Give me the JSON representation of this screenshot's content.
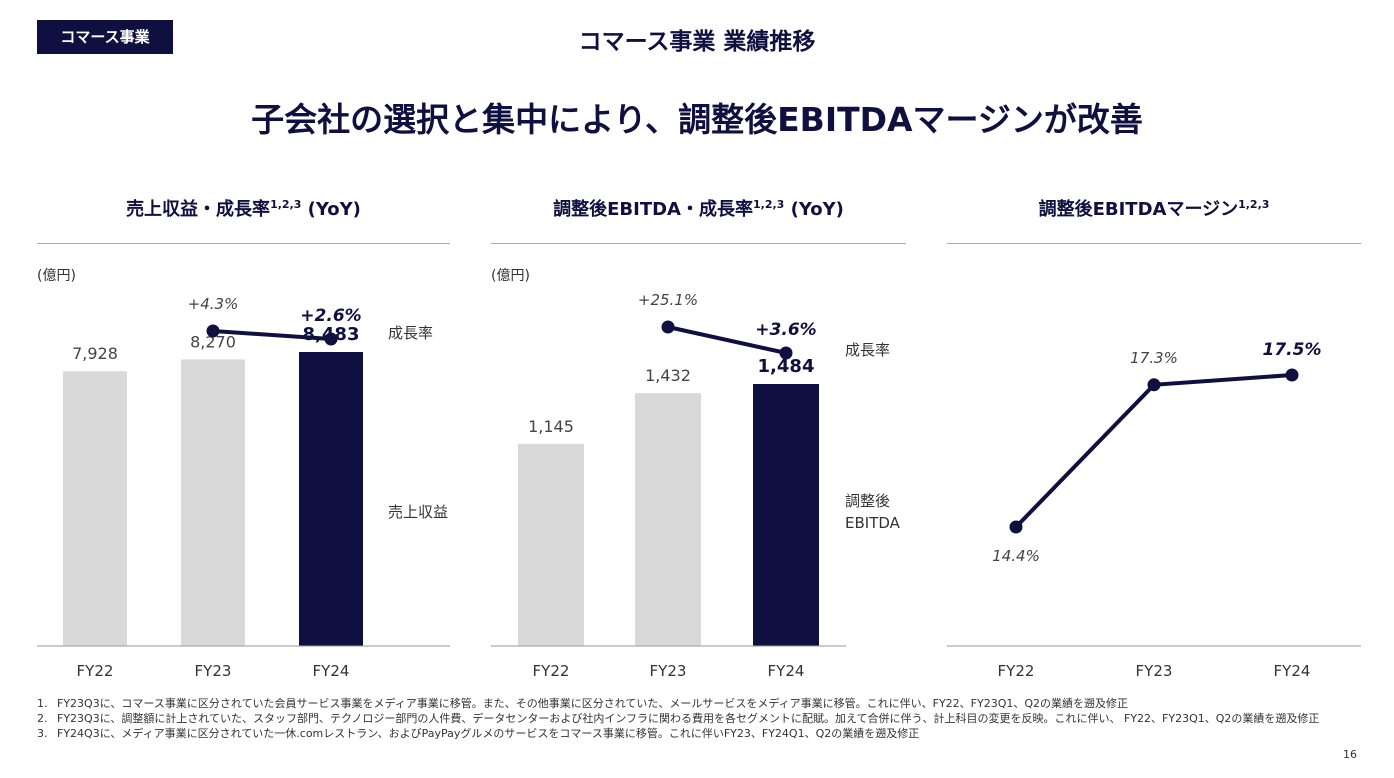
{
  "header": {
    "badge": "コマース事業",
    "title": "コマース事業 業績推移"
  },
  "headline": "子会社の選択と集中により、調整後EBITDAマージンが改善",
  "colors": {
    "navy": "#101040",
    "gray_bar": "#d9d9d9"
  },
  "chart_data": [
    {
      "type": "bar",
      "title": "売上収益・成長率",
      "title_sup": "1,2,3",
      "title_suffix": "(YoY)",
      "unit": "(億円)",
      "categories": [
        "FY22",
        "FY23",
        "FY24"
      ],
      "values": [
        7928,
        8270,
        8483
      ],
      "value_labels": [
        "7,928",
        "8,270",
        "8,483"
      ],
      "bar_label": "売上収益",
      "growth": {
        "label": "成長率",
        "x": [
          "FY23",
          "FY24"
        ],
        "values": [
          4.3,
          2.6
        ],
        "labels": [
          "+4.3%",
          "+2.6%"
        ]
      },
      "ylim": [
        0,
        9000
      ],
      "highlight": "FY24"
    },
    {
      "type": "bar",
      "title": "調整後EBITDA・成長率",
      "title_sup": "1,2,3",
      "title_suffix": "(YoY)",
      "unit": "(億円)",
      "categories": [
        "FY22",
        "FY23",
        "FY24"
      ],
      "values": [
        1145,
        1432,
        1484
      ],
      "value_labels": [
        "1,145",
        "1,432",
        "1,484"
      ],
      "bar_label_lines": [
        "調整後",
        "EBITDA"
      ],
      "growth": {
        "label": "成長率",
        "x": [
          "FY23",
          "FY24"
        ],
        "values": [
          25.1,
          3.6
        ],
        "labels": [
          "+25.1%",
          "+3.6%"
        ]
      },
      "ylim": [
        0,
        1800
      ],
      "highlight": "FY24"
    },
    {
      "type": "line",
      "title": "調整後EBITDAマージン",
      "title_sup": "1,2,3",
      "categories": [
        "FY22",
        "FY23",
        "FY24"
      ],
      "values": [
        14.4,
        17.3,
        17.5
      ],
      "value_labels": [
        "14.4%",
        "17.3%",
        "17.5%"
      ],
      "highlight": "FY24"
    }
  ],
  "footnotes": [
    {
      "num": "1.",
      "text": "FY23Q3に、コマース事業に区分されていた会員サービス事業をメディア事業に移管。また、その他事業に区分されていた、メールサービスをメディア事業に移管。これに伴い、FY22、FY23Q1、Q2の業績を遡及修正"
    },
    {
      "num": "2.",
      "text": "FY23Q3に、調整額に計上されていた、スタッフ部門、テクノロジー部門の人件費、データセンターおよび社内インフラに関わる費用を各セグメントに配賦。加えて合併に伴う、計上科目の変更を反映。これに伴い、 FY22、FY23Q1、Q2の業績を遡及修正"
    },
    {
      "num": "3.",
      "text": "FY24Q3に、メディア事業に区分されていた一休.comレストラン、およびPayPayグルメのサービスをコマース事業に移管。これに伴いFY23、FY24Q1、Q2の業績を遡及修正"
    }
  ],
  "page_number": "16"
}
